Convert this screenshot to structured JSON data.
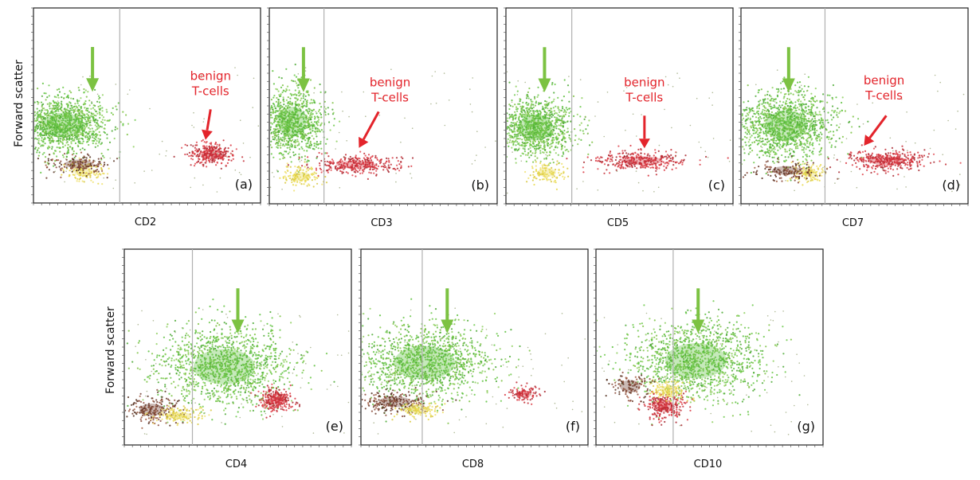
{
  "figure": {
    "y_axis_label": "Forward scatter"
  },
  "colors": {
    "highlight_arrow": "#7cc242",
    "annotation": "#e3242b",
    "population_main": "#5cbf3c",
    "population_tcells": "#d8323c",
    "population_debris": "#e8d84a",
    "population_dark": "#6b3a2a"
  },
  "chart_data": [
    {
      "id": "a",
      "type": "scatter",
      "panel_label": "(a)",
      "xlabel": "CD2",
      "ylabel": "Forward scatter",
      "annotation": {
        "lines": [
          "benign",
          "T-cells"
        ]
      },
      "gate_x": 0.38,
      "clusters": [
        {
          "population": "main",
          "cx": 0.13,
          "cy": 0.6,
          "rx": 0.2,
          "ry": 0.14,
          "n": 1300,
          "color": "population_main"
        },
        {
          "population": "debris",
          "cx": 0.22,
          "cy": 0.84,
          "rx": 0.09,
          "ry": 0.05,
          "n": 120,
          "color": "population_debris"
        },
        {
          "population": "dark",
          "cx": 0.2,
          "cy": 0.8,
          "rx": 0.14,
          "ry": 0.05,
          "n": 150,
          "color": "population_dark"
        },
        {
          "population": "benign-t-cells",
          "cx": 0.78,
          "cy": 0.75,
          "rx": 0.1,
          "ry": 0.055,
          "n": 320,
          "color": "population_tcells"
        }
      ]
    },
    {
      "id": "b",
      "type": "scatter",
      "panel_label": "(b)",
      "xlabel": "CD3",
      "ylabel": "",
      "annotation": {
        "lines": [
          "benign",
          "T-cells"
        ]
      },
      "gate_x": 0.24,
      "clusters": [
        {
          "population": "main",
          "cx": 0.1,
          "cy": 0.58,
          "rx": 0.14,
          "ry": 0.17,
          "n": 1000,
          "color": "population_main"
        },
        {
          "population": "debris",
          "cx": 0.14,
          "cy": 0.86,
          "rx": 0.09,
          "ry": 0.05,
          "n": 130,
          "color": "population_debris"
        },
        {
          "population": "benign-t-cells",
          "cx": 0.38,
          "cy": 0.8,
          "rx": 0.19,
          "ry": 0.045,
          "n": 330,
          "color": "population_tcells"
        }
      ]
    },
    {
      "id": "c",
      "type": "scatter",
      "panel_label": "(c)",
      "xlabel": "CD5",
      "ylabel": "",
      "annotation": {
        "lines": [
          "benign",
          "T-cells"
        ]
      },
      "gate_x": 0.29,
      "clusters": [
        {
          "population": "main",
          "cx": 0.13,
          "cy": 0.61,
          "rx": 0.17,
          "ry": 0.15,
          "n": 1100,
          "color": "population_main"
        },
        {
          "population": "debris",
          "cx": 0.18,
          "cy": 0.84,
          "rx": 0.09,
          "ry": 0.05,
          "n": 110,
          "color": "population_debris"
        },
        {
          "population": "benign-t-cells",
          "cx": 0.6,
          "cy": 0.78,
          "rx": 0.2,
          "ry": 0.05,
          "n": 340,
          "color": "population_tcells"
        }
      ]
    },
    {
      "id": "d",
      "type": "scatter",
      "panel_label": "(d)",
      "xlabel": "CD7",
      "ylabel": "",
      "annotation": {
        "lines": [
          "benign",
          "T-cells"
        ]
      },
      "gate_x": 0.37,
      "clusters": [
        {
          "population": "main",
          "cx": 0.2,
          "cy": 0.6,
          "rx": 0.21,
          "ry": 0.17,
          "n": 1300,
          "color": "population_main"
        },
        {
          "population": "debris",
          "cx": 0.3,
          "cy": 0.84,
          "rx": 0.07,
          "ry": 0.05,
          "n": 110,
          "color": "population_debris"
        },
        {
          "population": "dark",
          "cx": 0.2,
          "cy": 0.83,
          "rx": 0.14,
          "ry": 0.05,
          "n": 140,
          "color": "population_dark"
        },
        {
          "population": "benign-t-cells",
          "cx": 0.64,
          "cy": 0.78,
          "rx": 0.17,
          "ry": 0.05,
          "n": 380,
          "color": "population_tcells"
        }
      ]
    },
    {
      "id": "e",
      "type": "scatter",
      "panel_label": "(e)",
      "xlabel": "CD4",
      "ylabel": "Forward scatter",
      "annotation": null,
      "gate_x": 0.3,
      "clusters": [
        {
          "population": "main",
          "cx": 0.44,
          "cy": 0.6,
          "rx": 0.3,
          "ry": 0.2,
          "n": 1300,
          "color": "population_main"
        },
        {
          "population": "dark",
          "cx": 0.12,
          "cy": 0.82,
          "rx": 0.12,
          "ry": 0.07,
          "n": 200,
          "color": "population_dark"
        },
        {
          "population": "debris",
          "cx": 0.24,
          "cy": 0.85,
          "rx": 0.12,
          "ry": 0.04,
          "n": 120,
          "color": "population_debris"
        },
        {
          "population": "benign-t-cells",
          "cx": 0.67,
          "cy": 0.77,
          "rx": 0.08,
          "ry": 0.06,
          "n": 260,
          "color": "population_tcells"
        }
      ]
    },
    {
      "id": "f",
      "type": "scatter",
      "panel_label": "(f)",
      "xlabel": "CD8",
      "ylabel": "",
      "annotation": null,
      "gate_x": 0.27,
      "clusters": [
        {
          "population": "main",
          "cx": 0.28,
          "cy": 0.58,
          "rx": 0.3,
          "ry": 0.19,
          "n": 1300,
          "color": "population_main"
        },
        {
          "population": "dark",
          "cx": 0.15,
          "cy": 0.78,
          "rx": 0.16,
          "ry": 0.06,
          "n": 220,
          "color": "population_dark"
        },
        {
          "population": "debris",
          "cx": 0.25,
          "cy": 0.82,
          "rx": 0.1,
          "ry": 0.04,
          "n": 120,
          "color": "population_debris"
        },
        {
          "population": "benign-t-cells",
          "cx": 0.72,
          "cy": 0.74,
          "rx": 0.07,
          "ry": 0.04,
          "n": 110,
          "color": "population_tcells"
        }
      ]
    },
    {
      "id": "g",
      "type": "scatter",
      "panel_label": "(g)",
      "xlabel": "CD10",
      "ylabel": "",
      "annotation": null,
      "gate_x": 0.34,
      "clusters": [
        {
          "population": "main",
          "cx": 0.44,
          "cy": 0.57,
          "rx": 0.3,
          "ry": 0.2,
          "n": 1300,
          "color": "population_main"
        },
        {
          "population": "benign-t-cells",
          "cx": 0.3,
          "cy": 0.8,
          "rx": 0.1,
          "ry": 0.07,
          "n": 280,
          "color": "population_tcells"
        },
        {
          "population": "debris",
          "cx": 0.32,
          "cy": 0.72,
          "rx": 0.08,
          "ry": 0.05,
          "n": 120,
          "color": "population_debris"
        },
        {
          "population": "dark",
          "cx": 0.15,
          "cy": 0.7,
          "rx": 0.1,
          "ry": 0.07,
          "n": 110,
          "color": "population_dark"
        }
      ]
    }
  ]
}
